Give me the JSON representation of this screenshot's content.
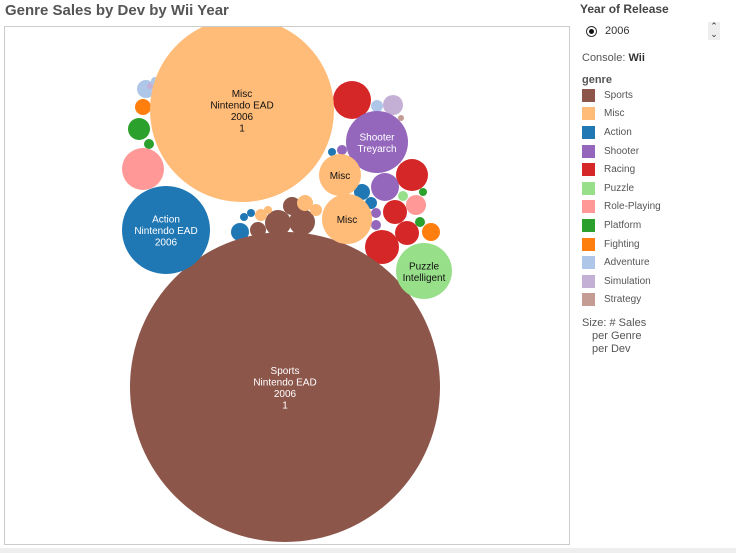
{
  "title": "Genre Sales by Dev by Wii Year",
  "filters": {
    "year_label": "Year of Release",
    "year_value": "2006",
    "console_label": "Console:",
    "console_value": "Wii"
  },
  "legend": {
    "title": "genre",
    "items": [
      {
        "label": "Sports",
        "color": "#8c564b"
      },
      {
        "label": "Misc",
        "color": "#ffbb78"
      },
      {
        "label": "Action",
        "color": "#1f77b4"
      },
      {
        "label": "Shooter",
        "color": "#9467bd"
      },
      {
        "label": "Racing",
        "color": "#d62728"
      },
      {
        "label": "Puzzle",
        "color": "#98df8a"
      },
      {
        "label": "Role-Playing",
        "color": "#ff9896"
      },
      {
        "label": "Platform",
        "color": "#2ca02c"
      },
      {
        "label": "Fighting",
        "color": "#ff7f0e"
      },
      {
        "label": "Adventure",
        "color": "#aec7e8"
      },
      {
        "label": "Simulation",
        "color": "#c5b0d5"
      },
      {
        "label": "Strategy",
        "color": "#c49c94"
      }
    ],
    "size_lines": [
      "Size: # Sales",
      "per Genre",
      "per Dev"
    ]
  },
  "chart_data": {
    "type": "packed-bubble",
    "title": "Genre Sales by Dev by Wii Year",
    "size_measure": "# Sales per Genre per Dev",
    "labeled_bubbles": [
      {
        "genre": "Sports",
        "lines": [
          "Sports",
          "Nintendo EAD",
          "2006",
          "1"
        ]
      },
      {
        "genre": "Misc",
        "lines": [
          "Misc",
          "Nintendo EAD",
          "2006",
          "1"
        ]
      },
      {
        "genre": "Action",
        "lines": [
          "Action",
          "Nintendo EAD",
          "2006"
        ]
      },
      {
        "genre": "Shooter",
        "lines": [
          "Shooter",
          "Treyarch"
        ]
      },
      {
        "genre": "Misc",
        "lines": [
          "Misc"
        ]
      },
      {
        "genre": "Misc",
        "lines": [
          "Misc"
        ]
      },
      {
        "genre": "Puzzle",
        "lines": [
          "Puzzle",
          "Intelligent"
        ]
      }
    ],
    "unlabeled_bubble_genres": [
      "Racing",
      "Racing",
      "Racing",
      "Racing",
      "Racing",
      "Shooter",
      "Shooter",
      "Shooter",
      "Shooter",
      "Simulation",
      "Adventure",
      "Strategy",
      "Platform",
      "Puzzle",
      "Role-Playing",
      "Platform",
      "Fighting",
      "Action",
      "Action",
      "Action",
      "Adventure",
      "Fighting",
      "Platform",
      "Platform",
      "Role-Playing",
      "Sports",
      "Sports",
      "Sports",
      "Sports",
      "Misc",
      "Misc",
      "Misc",
      "Misc",
      "Action",
      "Action",
      "Action",
      "Adventure",
      "Simulation"
    ]
  }
}
